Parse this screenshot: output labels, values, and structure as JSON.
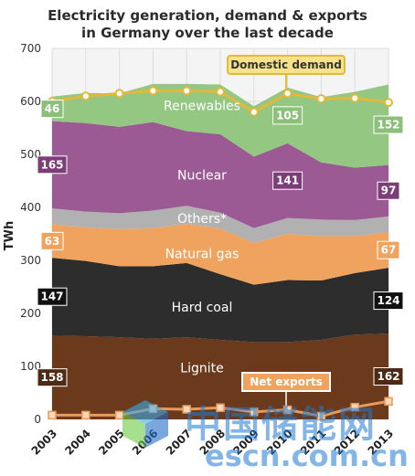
{
  "chart_data": {
    "type": "area",
    "title_lines": [
      "Electricity generation, demand & exports",
      "in Germany over the last decade"
    ],
    "ylabel": "TWh",
    "ylim": [
      0,
      700
    ],
    "yticks": [
      0,
      100,
      200,
      300,
      400,
      500,
      600,
      700
    ],
    "x": [
      "2003",
      "2004",
      "2005",
      "2006",
      "2007",
      "2008",
      "2009",
      "2010",
      "2011",
      "2012",
      "2013"
    ],
    "grid": true,
    "series": [
      {
        "name": "Lignite",
        "color": "#6b3a1c",
        "values": [
          158,
          157,
          155,
          152,
          155,
          150,
          146,
          146,
          150,
          160,
          162
        ],
        "start_label": "158",
        "end_label": "162"
      },
      {
        "name": "Hard coal",
        "color": "#2d2d2d",
        "values": [
          147,
          142,
          134,
          137,
          140,
          124,
          108,
          117,
          112,
          116,
          124
        ],
        "start_label": "147",
        "end_label": "124"
      },
      {
        "name": "Natural gas",
        "color": "#f0a35e",
        "values": [
          63,
          63,
          70,
          72,
          74,
          86,
          79,
          87,
          84,
          70,
          67
        ],
        "start_label": "63",
        "end_label": "67"
      },
      {
        "name": "Others*",
        "color": "#b1b1b1",
        "values": [
          30,
          30,
          30,
          33,
          34,
          30,
          28,
          30,
          31,
          30,
          30
        ]
      },
      {
        "name": "Nuclear",
        "color": "#9c5a94",
        "values": [
          165,
          167,
          163,
          167,
          141,
          148,
          135,
          141,
          108,
          99,
          97
        ],
        "start_label": "165",
        "mid_label": "141",
        "end_label": "97"
      },
      {
        "name": "Renewables",
        "color": "#94c782",
        "values": [
          46,
          57,
          63,
          72,
          89,
          94,
          95,
          105,
          123,
          143,
          152
        ],
        "start_label": "46",
        "mid_label": "105",
        "end_label": "152"
      }
    ],
    "overlay_series": [
      {
        "name": "Domestic demand",
        "color": "#e3b93a",
        "values": [
          600,
          610,
          615,
          620,
          620,
          618,
          580,
          615,
          605,
          606,
          598
        ]
      },
      {
        "name": "Net exports",
        "color": "#e89a5c",
        "values": [
          8,
          8,
          8,
          20,
          19,
          22,
          14,
          18,
          6,
          23,
          34
        ]
      }
    ]
  }
}
